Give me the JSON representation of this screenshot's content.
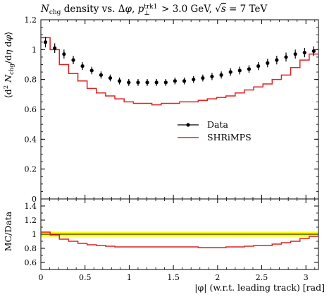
{
  "chart_data": [
    {
      "type": "line",
      "title": "N_chg density vs. Δφ, p_⊥^trk1 > 3.0 GeV, √s = 7 TeV",
      "ylabel": "⟨d² N_chg/dη dφ⟩",
      "xlabel": "",
      "xlim": [
        0,
        3.1416
      ],
      "ylim": [
        0,
        1.2
      ],
      "yticks": [
        "0",
        "0.2",
        "0.4",
        "0.6",
        "0.8",
        "1",
        "1.2"
      ],
      "grid": false,
      "legend_position": "center-right",
      "x": [
        0.052,
        0.157,
        0.262,
        0.367,
        0.471,
        0.576,
        0.681,
        0.785,
        0.89,
        0.995,
        1.1,
        1.204,
        1.309,
        1.414,
        1.518,
        1.623,
        1.728,
        1.833,
        1.937,
        2.042,
        2.147,
        2.251,
        2.356,
        2.461,
        2.566,
        2.67,
        2.775,
        2.88,
        2.985,
        3.089
      ],
      "series": [
        {
          "name": "Data",
          "color": "#000000",
          "style": "points-with-errors",
          "values": [
            1.05,
            1.01,
            0.97,
            0.93,
            0.89,
            0.86,
            0.83,
            0.81,
            0.79,
            0.78,
            0.78,
            0.78,
            0.78,
            0.78,
            0.79,
            0.79,
            0.8,
            0.81,
            0.82,
            0.83,
            0.85,
            0.86,
            0.87,
            0.89,
            0.91,
            0.93,
            0.95,
            0.97,
            0.98,
            0.99
          ],
          "errors": [
            0.035,
            0.032,
            0.03,
            0.028,
            0.026,
            0.025,
            0.024,
            0.023,
            0.023,
            0.023,
            0.023,
            0.023,
            0.023,
            0.023,
            0.023,
            0.023,
            0.023,
            0.023,
            0.024,
            0.024,
            0.025,
            0.026,
            0.026,
            0.027,
            0.028,
            0.029,
            0.03,
            0.03,
            0.031,
            0.032
          ]
        },
        {
          "name": "SHRiMPS",
          "color": "#dd2222",
          "style": "step",
          "values": [
            1.08,
            1.0,
            0.9,
            0.84,
            0.79,
            0.74,
            0.71,
            0.69,
            0.67,
            0.65,
            0.64,
            0.64,
            0.63,
            0.64,
            0.64,
            0.65,
            0.65,
            0.66,
            0.67,
            0.68,
            0.69,
            0.71,
            0.73,
            0.75,
            0.77,
            0.8,
            0.83,
            0.88,
            0.93,
            0.97
          ]
        }
      ]
    },
    {
      "type": "line",
      "title": "",
      "ylabel": "MC/Data",
      "xlabel": "|φ| (w.r.t. leading track) [rad]",
      "xlim": [
        0,
        3.1416
      ],
      "ylim": [
        0.5,
        1.5
      ],
      "yticks": [
        "0.6",
        "0.8",
        "1",
        "1.2",
        "1.4"
      ],
      "xticks": [
        "0",
        "0.5",
        "1",
        "1.5",
        "2",
        "2.5",
        "3"
      ],
      "grid": false,
      "reference_band": {
        "center": 1.0,
        "half_width": 0.035,
        "color": "#ffff00"
      },
      "series": [
        {
          "name": "SHRiMPS",
          "color": "#dd2222",
          "style": "step",
          "values": [
            1.03,
            0.99,
            0.93,
            0.9,
            0.87,
            0.85,
            0.84,
            0.83,
            0.82,
            0.82,
            0.82,
            0.82,
            0.82,
            0.82,
            0.82,
            0.82,
            0.82,
            0.81,
            0.81,
            0.81,
            0.82,
            0.82,
            0.83,
            0.84,
            0.84,
            0.86,
            0.88,
            0.9,
            0.94,
            0.97
          ]
        }
      ]
    }
  ]
}
